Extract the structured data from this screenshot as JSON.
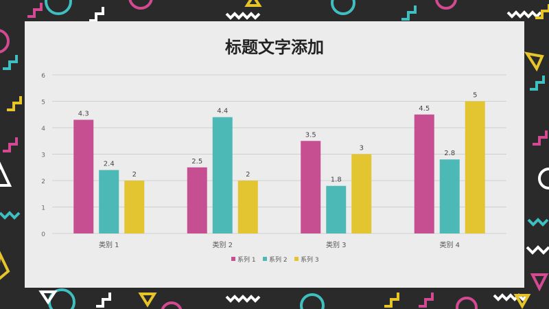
{
  "colors": {
    "background": "#2a2a2a",
    "panel": "#ececec",
    "series": [
      "#c64f91",
      "#4db9b6",
      "#e3c531"
    ],
    "decor": [
      "#d34a93",
      "#3fbfbf",
      "#e6c42a",
      "#ffffff"
    ]
  },
  "chart_data": {
    "type": "bar",
    "title": "标题文字添加",
    "categories": [
      "类别 1",
      "类别 2",
      "类别 3",
      "类别 4"
    ],
    "series": [
      {
        "name": "系列 1",
        "values": [
          4.3,
          2.5,
          3.5,
          4.5
        ]
      },
      {
        "name": "系列 2",
        "values": [
          2.4,
          4.4,
          1.8,
          2.8
        ]
      },
      {
        "name": "系列 3",
        "values": [
          2,
          2,
          3,
          5
        ]
      }
    ],
    "ylim": [
      0,
      6
    ],
    "yticks": [
      0,
      1,
      2,
      3,
      4,
      5,
      6
    ],
    "grid": true,
    "data_labels": true,
    "legend": "bottom"
  }
}
